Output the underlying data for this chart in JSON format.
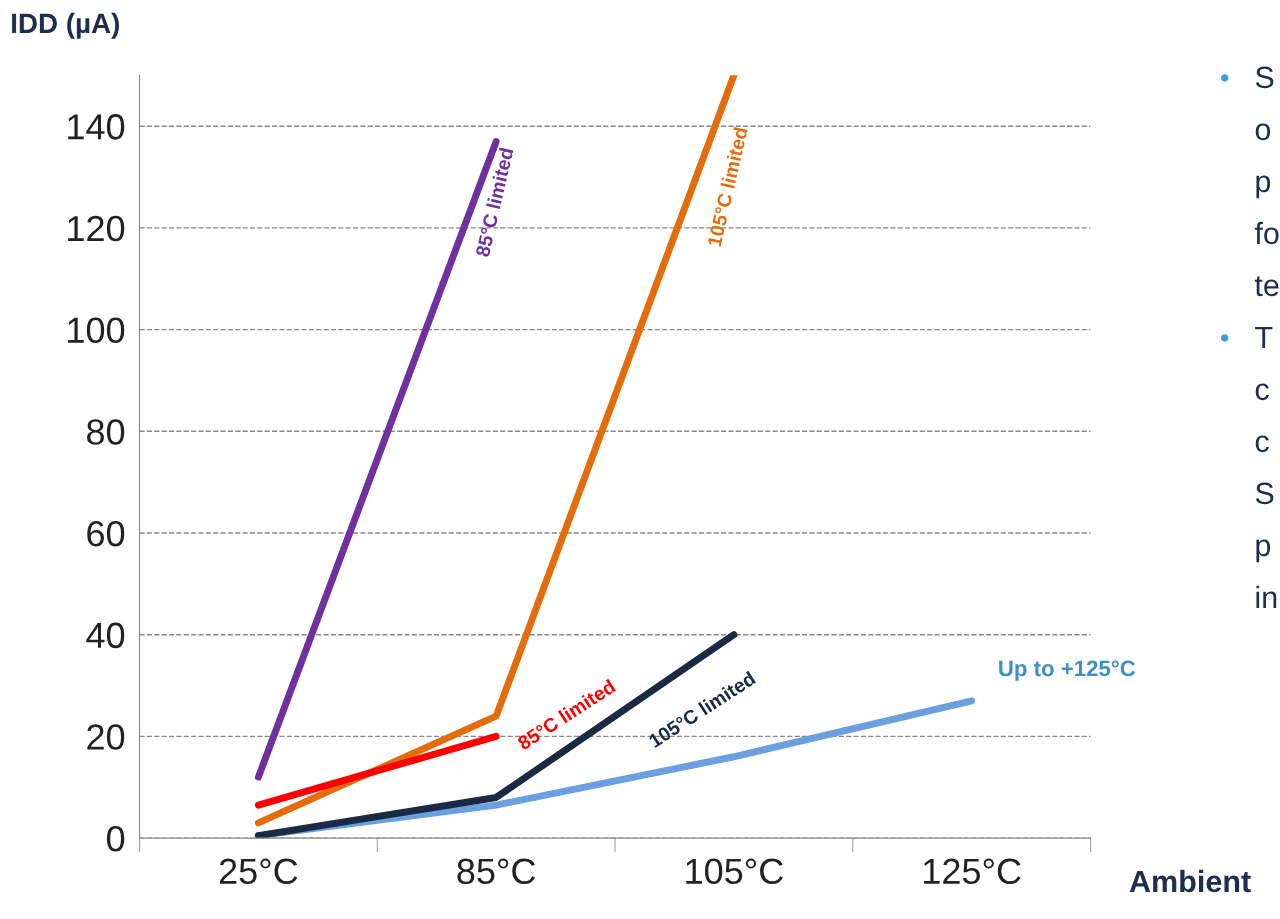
{
  "chart_data": {
    "type": "line",
    "ylabel": "IDD (µA)",
    "xlabel": "Ambient",
    "categories": [
      "25°C",
      "85°C",
      "105°C",
      "125°C"
    ],
    "series": [
      {
        "color": "#6a9fe0",
        "values": [
          0.5,
          6.5,
          16,
          27
        ]
      },
      {
        "color": "#7030a0",
        "values": [
          12,
          137,
          null,
          null
        ]
      },
      {
        "color": "#e46c0a",
        "values": [
          3,
          24,
          150,
          null
        ]
      },
      {
        "color": "#1b2a44",
        "values": [
          0.5,
          8,
          40,
          null
        ]
      },
      {
        "color": "#ff0000",
        "values": [
          6.5,
          20,
          null,
          null
        ]
      }
    ],
    "ylim": [
      0,
      150
    ],
    "yticks": [
      0,
      20,
      40,
      60,
      80,
      100,
      120,
      140
    ],
    "grid": "y",
    "marker": "none",
    "line_style": "solid",
    "legend": false,
    "annotations": [
      "85°C limited",
      "105°C limited",
      "85°C limited",
      "105°C limited",
      "Up to +125°C",
      "•",
      "S",
      "o",
      "p",
      "fo",
      "te",
      "•",
      "T",
      "c",
      "c",
      "S",
      "p",
      "in"
    ]
  }
}
